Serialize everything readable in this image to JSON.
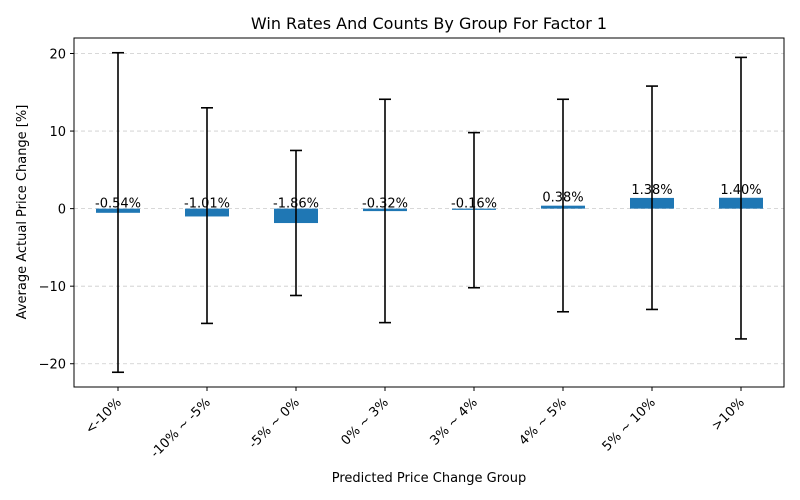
{
  "chart_data": {
    "type": "bar",
    "title": "Win Rates And Counts By Group For Factor 1",
    "xlabel": "Predicted Price Change Group",
    "ylabel": "Average Actual Price Change [%]",
    "categories": [
      "<-10%",
      "-10% ~ -5%",
      "-5% ~ 0%",
      "0% ~ 3%",
      "3% ~ 4%",
      "4% ~ 5%",
      "5% ~ 10%",
      ">10%"
    ],
    "values": [
      -0.54,
      -1.01,
      -1.86,
      -0.32,
      -0.16,
      0.38,
      1.38,
      1.4
    ],
    "data_labels": [
      "-0.54%",
      "-1.01%",
      "-1.86%",
      "-0.32%",
      "-0.16%",
      "0.38%",
      "1.38%",
      "1.40%"
    ],
    "error_low": [
      -21.1,
      -14.8,
      -11.2,
      -14.7,
      -10.2,
      -13.3,
      -13.0,
      -16.8
    ],
    "error_high": [
      20.1,
      13.0,
      7.5,
      14.1,
      9.8,
      14.1,
      15.8,
      19.5
    ],
    "yticks": [
      -20,
      -10,
      0,
      10,
      20
    ],
    "ylim": [
      -23,
      22
    ],
    "grid": "y-dashed",
    "bar_color": "#1f77b4"
  }
}
